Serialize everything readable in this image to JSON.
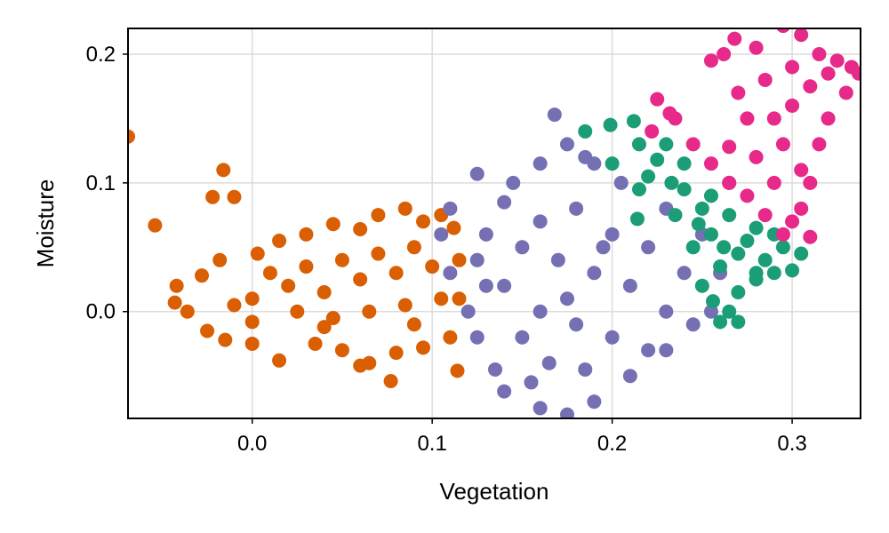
{
  "chart_data": {
    "type": "scatter",
    "title": "",
    "xlabel": "Vegetation",
    "ylabel": "Moisture",
    "xlim": [
      -0.069,
      0.338
    ],
    "ylim": [
      -0.083,
      0.22
    ],
    "xticks": [
      0.0,
      0.1,
      0.2,
      0.3
    ],
    "xtick_labels": [
      "0.0",
      "0.1",
      "0.2",
      "0.3"
    ],
    "yticks": [
      0.0,
      0.1,
      0.2
    ],
    "ytick_labels": [
      "0.0",
      "0.1",
      "0.2"
    ],
    "grid": true,
    "legend": "none",
    "series": [
      {
        "color": "#d95f02",
        "points": [
          [
            -0.069,
            0.136
          ],
          [
            -0.054,
            0.067
          ],
          [
            -0.016,
            0.11
          ],
          [
            -0.022,
            0.089
          ],
          [
            -0.01,
            0.089
          ],
          [
            -0.042,
            0.02
          ],
          [
            -0.043,
            0.007
          ],
          [
            -0.036,
            0.0
          ],
          [
            -0.028,
            0.028
          ],
          [
            -0.018,
            0.04
          ],
          [
            0.003,
            0.045
          ],
          [
            0.015,
            0.055
          ],
          [
            0.03,
            0.06
          ],
          [
            0.045,
            0.068
          ],
          [
            0.06,
            0.064
          ],
          [
            0.07,
            0.075
          ],
          [
            0.085,
            0.08
          ],
          [
            0.095,
            0.07
          ],
          [
            0.105,
            0.075
          ],
          [
            0.112,
            0.065
          ],
          [
            0.115,
            0.04
          ],
          [
            0.115,
            0.01
          ],
          [
            0.11,
            -0.02
          ],
          [
            0.095,
            -0.028
          ],
          [
            0.08,
            -0.032
          ],
          [
            0.065,
            -0.04
          ],
          [
            0.05,
            -0.03
          ],
          [
            0.035,
            -0.025
          ],
          [
            0.015,
            -0.038
          ],
          [
            0.0,
            -0.025
          ],
          [
            -0.015,
            -0.022
          ],
          [
            -0.025,
            -0.015
          ],
          [
            0.077,
            -0.054
          ],
          [
            0.114,
            -0.046
          ],
          [
            0.06,
            -0.042
          ],
          [
            0.0,
            0.01
          ],
          [
            0.02,
            0.02
          ],
          [
            0.04,
            0.015
          ],
          [
            0.06,
            0.025
          ],
          [
            0.08,
            0.03
          ],
          [
            0.1,
            0.035
          ],
          [
            0.01,
            0.03
          ],
          [
            0.03,
            0.035
          ],
          [
            0.05,
            0.04
          ],
          [
            0.07,
            0.045
          ],
          [
            0.09,
            0.05
          ],
          [
            0.025,
            0.0
          ],
          [
            0.045,
            -0.005
          ],
          [
            0.065,
            0.0
          ],
          [
            0.085,
            0.005
          ],
          [
            0.105,
            0.01
          ],
          [
            -0.01,
            0.005
          ],
          [
            0.0,
            -0.008
          ],
          [
            0.04,
            -0.012
          ],
          [
            0.09,
            -0.01
          ]
        ]
      },
      {
        "color": "#7570b3",
        "points": [
          [
            0.168,
            0.153
          ],
          [
            0.175,
            0.13
          ],
          [
            0.185,
            0.12
          ],
          [
            0.125,
            0.107
          ],
          [
            0.145,
            0.1
          ],
          [
            0.16,
            0.115
          ],
          [
            0.11,
            0.08
          ],
          [
            0.105,
            0.06
          ],
          [
            0.11,
            0.03
          ],
          [
            0.12,
            0.0
          ],
          [
            0.125,
            -0.02
          ],
          [
            0.135,
            -0.045
          ],
          [
            0.14,
            -0.062
          ],
          [
            0.16,
            -0.075
          ],
          [
            0.175,
            -0.08
          ],
          [
            0.19,
            -0.07
          ],
          [
            0.21,
            -0.05
          ],
          [
            0.23,
            -0.03
          ],
          [
            0.245,
            -0.01
          ],
          [
            0.255,
            0.0
          ],
          [
            0.26,
            0.03
          ],
          [
            0.25,
            0.06
          ],
          [
            0.23,
            0.08
          ],
          [
            0.205,
            0.1
          ],
          [
            0.19,
            0.115
          ],
          [
            0.15,
            0.05
          ],
          [
            0.17,
            0.04
          ],
          [
            0.19,
            0.03
          ],
          [
            0.21,
            0.02
          ],
          [
            0.16,
            0.0
          ],
          [
            0.18,
            -0.01
          ],
          [
            0.2,
            -0.02
          ],
          [
            0.14,
            0.02
          ],
          [
            0.16,
            0.07
          ],
          [
            0.18,
            0.08
          ],
          [
            0.2,
            0.06
          ],
          [
            0.22,
            0.05
          ],
          [
            0.24,
            0.03
          ],
          [
            0.23,
            0.0
          ],
          [
            0.22,
            -0.03
          ],
          [
            0.185,
            -0.045
          ],
          [
            0.165,
            -0.04
          ],
          [
            0.15,
            -0.02
          ],
          [
            0.13,
            0.06
          ],
          [
            0.14,
            0.085
          ],
          [
            0.125,
            0.04
          ],
          [
            0.13,
            0.02
          ],
          [
            0.175,
            0.01
          ],
          [
            0.195,
            0.05
          ],
          [
            0.155,
            -0.055
          ]
        ]
      },
      {
        "color": "#1b9e77",
        "points": [
          [
            0.199,
            0.145
          ],
          [
            0.212,
            0.148
          ],
          [
            0.185,
            0.14
          ],
          [
            0.215,
            0.13
          ],
          [
            0.23,
            0.13
          ],
          [
            0.2,
            0.115
          ],
          [
            0.22,
            0.105
          ],
          [
            0.24,
            0.095
          ],
          [
            0.255,
            0.09
          ],
          [
            0.265,
            0.075
          ],
          [
            0.28,
            0.065
          ],
          [
            0.295,
            0.05
          ],
          [
            0.305,
            0.045
          ],
          [
            0.3,
            0.032
          ],
          [
            0.29,
            0.03
          ],
          [
            0.28,
            0.025
          ],
          [
            0.27,
            0.015
          ],
          [
            0.265,
            0.0
          ],
          [
            0.27,
            -0.008
          ],
          [
            0.26,
            -0.008
          ],
          [
            0.25,
            0.02
          ],
          [
            0.245,
            0.05
          ],
          [
            0.235,
            0.075
          ],
          [
            0.215,
            0.095
          ],
          [
            0.214,
            0.072
          ],
          [
            0.255,
            0.06
          ],
          [
            0.27,
            0.045
          ],
          [
            0.285,
            0.04
          ],
          [
            0.26,
            0.035
          ],
          [
            0.275,
            0.055
          ],
          [
            0.25,
            0.08
          ],
          [
            0.265,
            0.1
          ],
          [
            0.24,
            0.115
          ],
          [
            0.225,
            0.118
          ],
          [
            0.28,
            0.03
          ],
          [
            0.256,
            0.008
          ],
          [
            0.262,
            0.05
          ],
          [
            0.248,
            0.068
          ],
          [
            0.233,
            0.1
          ],
          [
            0.29,
            0.06
          ]
        ]
      },
      {
        "color": "#e7298a",
        "points": [
          [
            0.268,
            0.212
          ],
          [
            0.28,
            0.205
          ],
          [
            0.295,
            0.222
          ],
          [
            0.305,
            0.215
          ],
          [
            0.315,
            0.2
          ],
          [
            0.325,
            0.195
          ],
          [
            0.333,
            0.19
          ],
          [
            0.337,
            0.185
          ],
          [
            0.33,
            0.17
          ],
          [
            0.32,
            0.15
          ],
          [
            0.315,
            0.13
          ],
          [
            0.31,
            0.1
          ],
          [
            0.305,
            0.08
          ],
          [
            0.3,
            0.07
          ],
          [
            0.31,
            0.058
          ],
          [
            0.295,
            0.06
          ],
          [
            0.285,
            0.075
          ],
          [
            0.275,
            0.09
          ],
          [
            0.265,
            0.1
          ],
          [
            0.255,
            0.115
          ],
          [
            0.245,
            0.13
          ],
          [
            0.235,
            0.15
          ],
          [
            0.225,
            0.165
          ],
          [
            0.232,
            0.154
          ],
          [
            0.222,
            0.14
          ],
          [
            0.265,
            0.128
          ],
          [
            0.262,
            0.2
          ],
          [
            0.255,
            0.195
          ],
          [
            0.29,
            0.15
          ],
          [
            0.3,
            0.16
          ],
          [
            0.285,
            0.18
          ],
          [
            0.3,
            0.19
          ],
          [
            0.31,
            0.175
          ],
          [
            0.275,
            0.15
          ],
          [
            0.28,
            0.12
          ],
          [
            0.29,
            0.1
          ],
          [
            0.27,
            0.17
          ],
          [
            0.32,
            0.185
          ],
          [
            0.295,
            0.13
          ],
          [
            0.305,
            0.11
          ]
        ]
      }
    ]
  }
}
